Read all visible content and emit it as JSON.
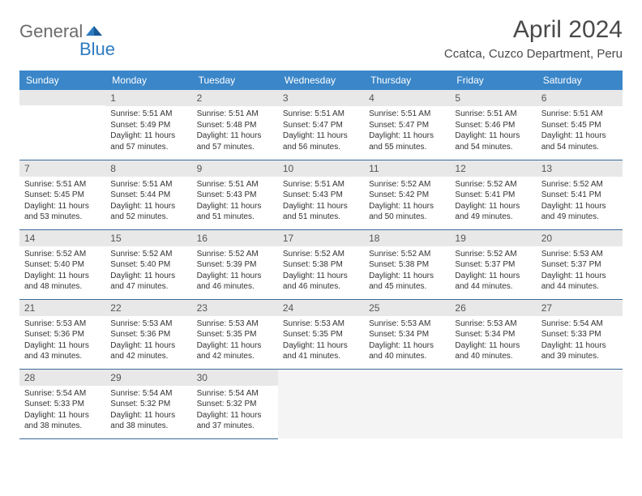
{
  "logo": {
    "general": "General",
    "blue": "Blue"
  },
  "title": "April 2024",
  "location": "Ccatca, Cuzco Department, Peru",
  "colors": {
    "header_bg": "#3a86c8",
    "header_text": "#ffffff",
    "daynum_bg": "#e8e8e8",
    "rule": "#3a6a9a",
    "logo_gray": "#6b6b6b",
    "logo_blue": "#2d7bc0",
    "text": "#333333"
  },
  "weekdays": [
    "Sunday",
    "Monday",
    "Tuesday",
    "Wednesday",
    "Thursday",
    "Friday",
    "Saturday"
  ],
  "grid": {
    "first_weekday_index": 1,
    "days_in_month": 30
  },
  "days": {
    "1": {
      "sunrise": "5:51 AM",
      "sunset": "5:49 PM",
      "daylight": "11 hours and 57 minutes."
    },
    "2": {
      "sunrise": "5:51 AM",
      "sunset": "5:48 PM",
      "daylight": "11 hours and 57 minutes."
    },
    "3": {
      "sunrise": "5:51 AM",
      "sunset": "5:47 PM",
      "daylight": "11 hours and 56 minutes."
    },
    "4": {
      "sunrise": "5:51 AM",
      "sunset": "5:47 PM",
      "daylight": "11 hours and 55 minutes."
    },
    "5": {
      "sunrise": "5:51 AM",
      "sunset": "5:46 PM",
      "daylight": "11 hours and 54 minutes."
    },
    "6": {
      "sunrise": "5:51 AM",
      "sunset": "5:45 PM",
      "daylight": "11 hours and 54 minutes."
    },
    "7": {
      "sunrise": "5:51 AM",
      "sunset": "5:45 PM",
      "daylight": "11 hours and 53 minutes."
    },
    "8": {
      "sunrise": "5:51 AM",
      "sunset": "5:44 PM",
      "daylight": "11 hours and 52 minutes."
    },
    "9": {
      "sunrise": "5:51 AM",
      "sunset": "5:43 PM",
      "daylight": "11 hours and 51 minutes."
    },
    "10": {
      "sunrise": "5:51 AM",
      "sunset": "5:43 PM",
      "daylight": "11 hours and 51 minutes."
    },
    "11": {
      "sunrise": "5:52 AM",
      "sunset": "5:42 PM",
      "daylight": "11 hours and 50 minutes."
    },
    "12": {
      "sunrise": "5:52 AM",
      "sunset": "5:41 PM",
      "daylight": "11 hours and 49 minutes."
    },
    "13": {
      "sunrise": "5:52 AM",
      "sunset": "5:41 PM",
      "daylight": "11 hours and 49 minutes."
    },
    "14": {
      "sunrise": "5:52 AM",
      "sunset": "5:40 PM",
      "daylight": "11 hours and 48 minutes."
    },
    "15": {
      "sunrise": "5:52 AM",
      "sunset": "5:40 PM",
      "daylight": "11 hours and 47 minutes."
    },
    "16": {
      "sunrise": "5:52 AM",
      "sunset": "5:39 PM",
      "daylight": "11 hours and 46 minutes."
    },
    "17": {
      "sunrise": "5:52 AM",
      "sunset": "5:38 PM",
      "daylight": "11 hours and 46 minutes."
    },
    "18": {
      "sunrise": "5:52 AM",
      "sunset": "5:38 PM",
      "daylight": "11 hours and 45 minutes."
    },
    "19": {
      "sunrise": "5:52 AM",
      "sunset": "5:37 PM",
      "daylight": "11 hours and 44 minutes."
    },
    "20": {
      "sunrise": "5:53 AM",
      "sunset": "5:37 PM",
      "daylight": "11 hours and 44 minutes."
    },
    "21": {
      "sunrise": "5:53 AM",
      "sunset": "5:36 PM",
      "daylight": "11 hours and 43 minutes."
    },
    "22": {
      "sunrise": "5:53 AM",
      "sunset": "5:36 PM",
      "daylight": "11 hours and 42 minutes."
    },
    "23": {
      "sunrise": "5:53 AM",
      "sunset": "5:35 PM",
      "daylight": "11 hours and 42 minutes."
    },
    "24": {
      "sunrise": "5:53 AM",
      "sunset": "5:35 PM",
      "daylight": "11 hours and 41 minutes."
    },
    "25": {
      "sunrise": "5:53 AM",
      "sunset": "5:34 PM",
      "daylight": "11 hours and 40 minutes."
    },
    "26": {
      "sunrise": "5:53 AM",
      "sunset": "5:34 PM",
      "daylight": "11 hours and 40 minutes."
    },
    "27": {
      "sunrise": "5:54 AM",
      "sunset": "5:33 PM",
      "daylight": "11 hours and 39 minutes."
    },
    "28": {
      "sunrise": "5:54 AM",
      "sunset": "5:33 PM",
      "daylight": "11 hours and 38 minutes."
    },
    "29": {
      "sunrise": "5:54 AM",
      "sunset": "5:32 PM",
      "daylight": "11 hours and 38 minutes."
    },
    "30": {
      "sunrise": "5:54 AM",
      "sunset": "5:32 PM",
      "daylight": "11 hours and 37 minutes."
    }
  },
  "labels": {
    "sunrise": "Sunrise:",
    "sunset": "Sunset:",
    "daylight": "Daylight:"
  }
}
